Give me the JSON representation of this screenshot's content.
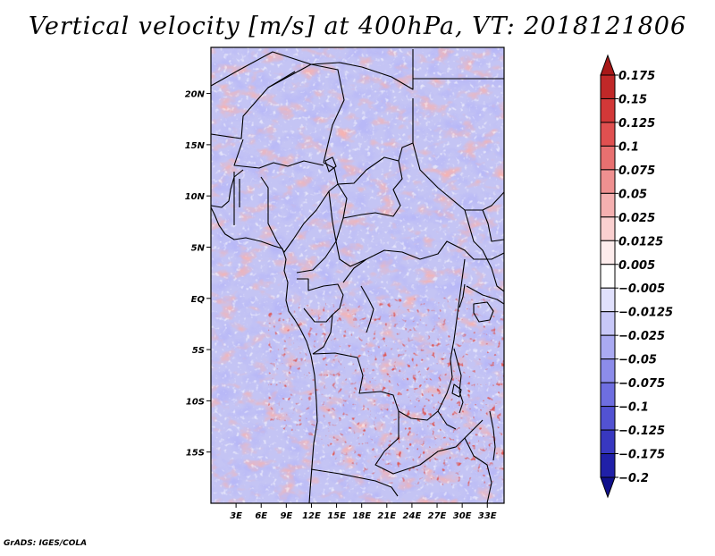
{
  "title": "Vertical velocity [m/s] at 400hPa, VT: 2018121806",
  "credit": "GrADS: IGES/COLA",
  "chart_data": {
    "type": "heatmap",
    "variable": "Vertical velocity",
    "units": "m/s",
    "level": "400hPa",
    "valid_time": "2018121806",
    "lon_range": [
      0,
      35
    ],
    "lat_range": [
      -20,
      24.5
    ],
    "x_ticks": [
      3,
      6,
      9,
      12,
      15,
      18,
      21,
      24,
      27,
      30,
      33
    ],
    "x_tick_labels": [
      "3E",
      "6E",
      "9E",
      "12E",
      "15E",
      "18E",
      "21E",
      "24E",
      "27E",
      "30E",
      "33E"
    ],
    "y_ticks": [
      20,
      15,
      10,
      5,
      0,
      -5,
      -10,
      -15
    ],
    "y_tick_labels": [
      "20N",
      "15N",
      "10N",
      "5N",
      "EQ",
      "5S",
      "10S",
      "15S"
    ],
    "colorbar": {
      "labels": [
        "0.175",
        "0.15",
        "0.125",
        "0.1",
        "0.075",
        "0.05",
        "0.025",
        "0.0125",
        "0.005",
        "-0.005",
        "-0.0125",
        "-0.025",
        "-0.05",
        "-0.075",
        "-0.1",
        "-0.125",
        "-0.175",
        "-0.2"
      ],
      "colors": [
        "#a81818",
        "#c02828",
        "#d23838",
        "#e05050",
        "#e87070",
        "#ef9090",
        "#f5b0b0",
        "#fad0d0",
        "#fdecec",
        "#ffffff",
        "#e0e0fc",
        "#c8c8f8",
        "#aaaaf2",
        "#8c8cea",
        "#6e6ee0",
        "#5252d2",
        "#3838c0",
        "#2020a8",
        "#10108c"
      ]
    }
  }
}
